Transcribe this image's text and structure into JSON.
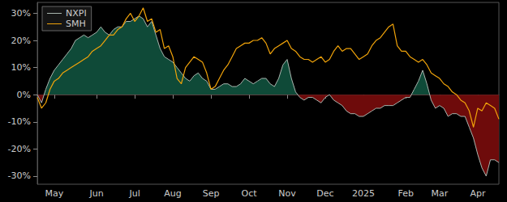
{
  "chart_data": {
    "type": "line",
    "categories": [
      null,
      null,
      null,
      null,
      "May",
      null,
      null,
      null,
      null,
      null,
      null,
      null,
      null,
      null,
      "Jun",
      null,
      null,
      null,
      null,
      null,
      null,
      null,
      null,
      "Jul",
      null,
      null,
      null,
      null,
      null,
      null,
      null,
      null,
      "Aug",
      null,
      null,
      null,
      null,
      null,
      null,
      null,
      null,
      "Sep",
      null,
      null,
      null,
      null,
      null,
      null,
      null,
      null,
      "Oct",
      null,
      null,
      null,
      null,
      null,
      null,
      null,
      null,
      "Nov",
      null,
      null,
      null,
      null,
      null,
      null,
      null,
      null,
      "Dec",
      null,
      null,
      null,
      null,
      null,
      null,
      null,
      null,
      "2025",
      null,
      null,
      null,
      null,
      null,
      null,
      null,
      null,
      null,
      "Feb",
      null,
      null,
      null,
      null,
      null,
      null,
      null,
      "Mar",
      null,
      null,
      null,
      null,
      null,
      null,
      null,
      null,
      "Apr",
      null,
      null,
      null,
      null,
      null
    ],
    "series": [
      {
        "name": "NXPI",
        "type": "area",
        "color": "#a9b5ae",
        "values": [
          0,
          -3,
          2,
          6,
          9,
          11,
          13,
          15,
          17,
          20,
          21,
          22,
          21,
          22,
          23,
          25,
          23,
          22,
          24,
          25,
          25,
          27,
          27,
          28,
          29,
          28,
          25,
          27,
          22,
          17,
          14,
          13,
          12,
          10,
          8,
          6,
          5,
          7,
          8,
          6,
          5,
          2,
          2,
          3,
          4,
          4,
          3,
          3,
          4,
          6,
          5,
          4,
          5,
          6,
          6,
          4,
          3,
          6,
          11,
          13,
          6,
          1,
          -1,
          -2,
          -1,
          -1,
          -2,
          -3,
          -1,
          0,
          -2,
          -3,
          -4,
          -6,
          -7,
          -7,
          -8,
          -8,
          -7,
          -6,
          -5,
          -5,
          -4,
          -4,
          -4,
          -3,
          -2,
          -1,
          -1,
          2,
          5,
          9,
          4,
          -2,
          -5,
          -4,
          -5,
          -8,
          -7,
          -7,
          -8,
          -8,
          -12,
          -16,
          -22,
          -27,
          -30,
          -24,
          -24,
          -25
        ]
      },
      {
        "name": "SMH",
        "type": "line",
        "color": "#f0a30a",
        "values": [
          -1,
          -5,
          -3,
          2,
          5,
          6,
          8,
          9,
          10,
          11,
          12,
          13,
          14,
          16,
          17,
          18,
          20,
          22,
          22,
          24,
          25,
          28,
          30,
          27,
          29,
          32,
          27,
          28,
          23,
          24,
          17,
          18,
          14,
          6,
          4,
          10,
          12,
          14,
          13,
          12,
          8,
          2,
          3,
          6,
          9,
          11,
          14,
          17,
          18,
          19,
          19,
          20,
          20,
          21,
          19,
          15,
          17,
          18,
          19,
          20,
          17,
          16,
          14,
          13,
          13,
          12,
          13,
          14,
          12,
          13,
          16,
          18,
          16,
          17,
          17,
          15,
          13,
          14,
          15,
          18,
          20,
          21,
          23,
          25,
          26,
          18,
          16,
          16,
          14,
          13,
          12,
          13,
          11,
          8,
          7,
          6,
          4,
          3,
          1,
          0,
          -2,
          -3,
          -6,
          -12,
          -5,
          -6,
          -3,
          -4,
          -5,
          -9
        ]
      }
    ],
    "ylim": [
      -33,
      34
    ],
    "yticks": [
      {
        "value": -30,
        "label": "-30%"
      },
      {
        "value": -20,
        "label": "-20%"
      },
      {
        "value": -10,
        "label": "-10%"
      },
      {
        "value": 0,
        "label": "0%"
      },
      {
        "value": 10,
        "label": "10%"
      },
      {
        "value": 20,
        "label": "20%"
      },
      {
        "value": 30,
        "label": "30%"
      }
    ],
    "grid": false,
    "legend": "upper left"
  }
}
